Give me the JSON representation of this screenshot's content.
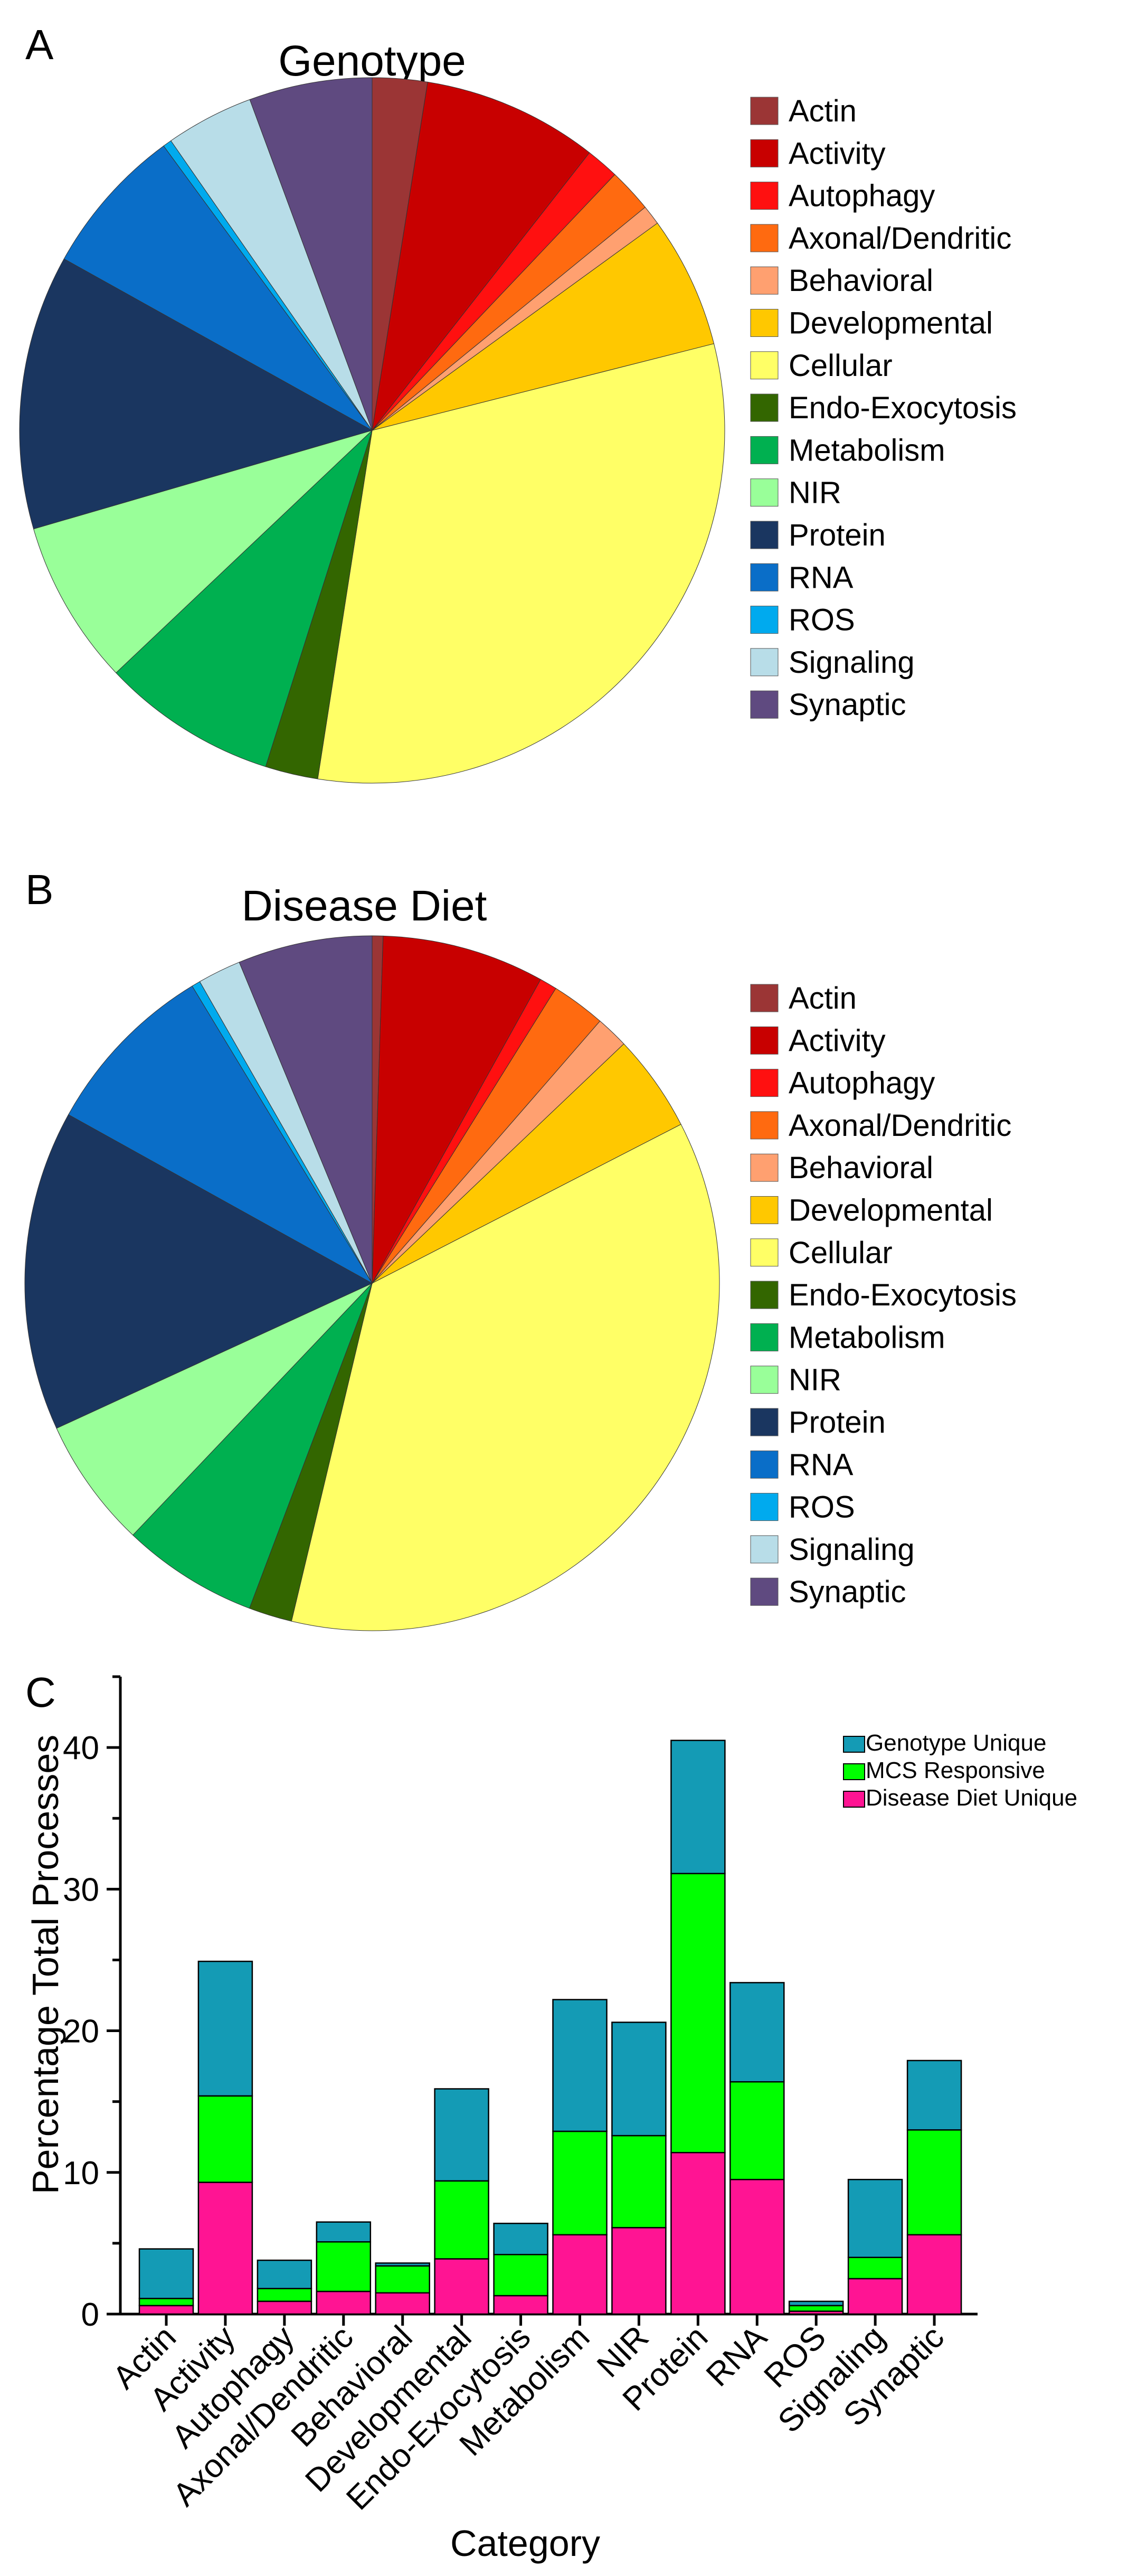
{
  "panels": [
    {
      "label": "A"
    },
    {
      "label": "B"
    },
    {
      "label": "C"
    }
  ],
  "chart_data": [
    {
      "type": "pie",
      "title": "Genotype",
      "labels": [
        "Actin",
        "Activity",
        "Autophagy",
        "Axonal/Dendritic",
        "Behavioral",
        "Developmental",
        "Cellular",
        "Endo-Exocytosis",
        "Metabolism",
        "NIR",
        "Protein",
        "RNA",
        "ROS",
        "Signaling",
        "Synaptic"
      ],
      "colors": [
        "#9b3535",
        "#c80000",
        "#ff1010",
        "#ff6a10",
        "#ffa070",
        "#ffc800",
        "#ffff66",
        "#336600",
        "#00b050",
        "#99ff99",
        "#1a3660",
        "#0a6ec8",
        "#00aaee",
        "#b8dde8",
        "#5f4a80"
      ],
      "values": [
        2.5,
        8.0,
        1.5,
        2.0,
        0.9,
        6.0,
        31.2,
        2.4,
        8.0,
        7.5,
        12.5,
        6.8,
        0.4,
        4.0,
        5.6
      ],
      "legend_position": "right"
    },
    {
      "type": "pie",
      "title": "Disease Diet",
      "labels": [
        "Actin",
        "Activity",
        "Autophagy",
        "Axonal/Dendritic",
        "Behavioral",
        "Developmental",
        "Cellular",
        "Endo-Exocytosis",
        "Metabolism",
        "NIR",
        "Protein",
        "RNA",
        "ROS",
        "Signaling",
        "Synaptic"
      ],
      "colors": [
        "#9b3535",
        "#c80000",
        "#ff1010",
        "#ff6a10",
        "#ffa070",
        "#ffc800",
        "#ffff66",
        "#336600",
        "#00b050",
        "#99ff99",
        "#1a3660",
        "#0a6ec8",
        "#00aaee",
        "#b8dde8",
        "#5f4a80"
      ],
      "values": [
        0.5,
        7.5,
        0.8,
        2.5,
        1.5,
        4.5,
        36.0,
        2.0,
        6.3,
        6.0,
        14.8,
        8.2,
        0.4,
        2.0,
        6.2
      ],
      "legend_position": "right"
    },
    {
      "type": "bar",
      "stacked": true,
      "categories": [
        "Actin",
        "Activity",
        "Autophagy",
        "Axonal/Dendritic",
        "Behavioral",
        "Developmental",
        "Endo-Exocytosis",
        "Metabolism",
        "NIR",
        "Protein",
        "RNA",
        "ROS",
        "Signaling",
        "Synaptic"
      ],
      "series": [
        {
          "name": "Disease Diet Unique",
          "color": "#ff1493",
          "values": [
            0.6,
            9.3,
            0.9,
            1.6,
            1.5,
            3.9,
            1.3,
            5.6,
            6.1,
            11.4,
            9.5,
            0.2,
            2.5,
            5.6
          ]
        },
        {
          "name": "MCS Responsive",
          "color": "#00ff00",
          "values": [
            0.5,
            6.1,
            0.9,
            3.5,
            1.9,
            5.5,
            2.9,
            7.3,
            6.5,
            19.7,
            6.9,
            0.4,
            1.5,
            7.4
          ]
        },
        {
          "name": "Genotype Unique",
          "color": "#149bb5",
          "values": [
            3.5,
            9.5,
            2.0,
            1.4,
            0.2,
            6.5,
            2.2,
            9.3,
            8.0,
            9.4,
            7.0,
            0.3,
            5.5,
            4.9
          ]
        }
      ],
      "legend_order": [
        "Genotype Unique",
        "MCS Responsive",
        "Disease Diet Unique"
      ],
      "ylabel": "Percentage Total Processes",
      "xlabel": "Category",
      "ylim": [
        0,
        45
      ],
      "yticks": [
        0,
        10,
        20,
        30,
        40
      ],
      "legend_position": "top-right"
    }
  ]
}
